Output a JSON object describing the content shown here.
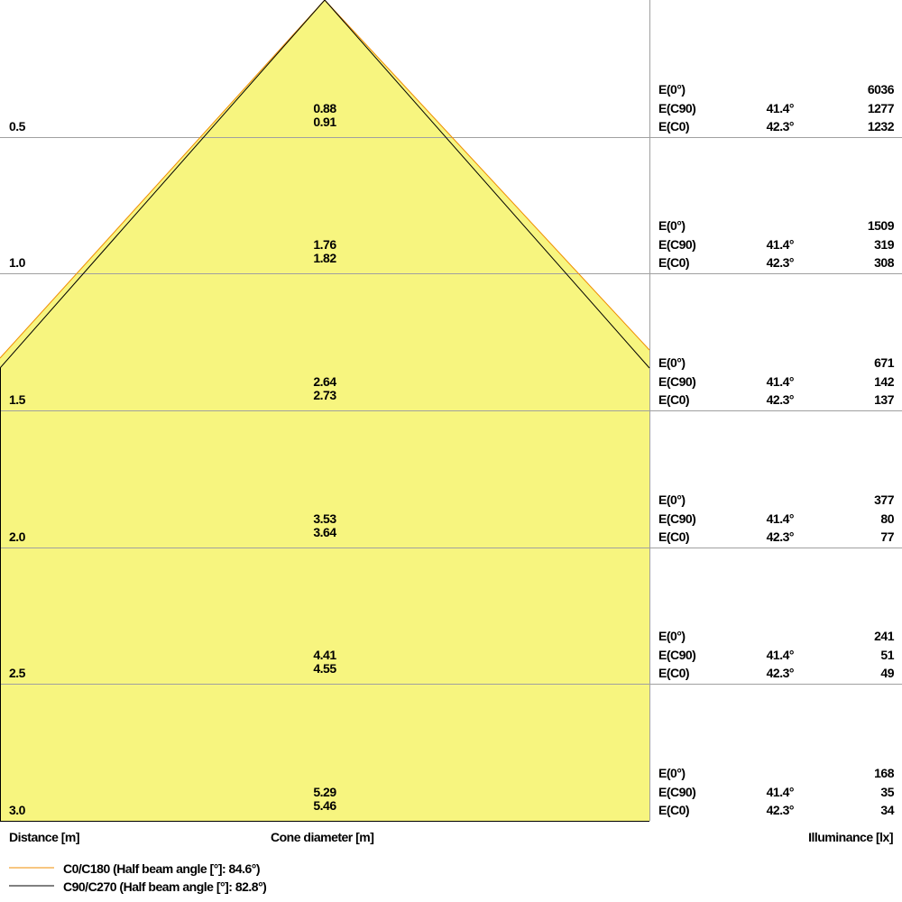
{
  "colors": {
    "cone_fill": "#f7f57f",
    "c0_line": "#f08c00",
    "c90_line": "#000000",
    "grid": "#a0a0a0"
  },
  "rows": [
    {
      "distance": "0.5",
      "d_c0": "0.88",
      "d_c90": "0.91",
      "e0": "6036",
      "a90": "41.4°",
      "e90": "1277",
      "a0": "42.3°",
      "ec0": "1232"
    },
    {
      "distance": "1.0",
      "d_c0": "1.76",
      "d_c90": "1.82",
      "e0": "1509",
      "a90": "41.4°",
      "e90": "319",
      "a0": "42.3°",
      "ec0": "308"
    },
    {
      "distance": "1.5",
      "d_c0": "2.64",
      "d_c90": "2.73",
      "e0": "671",
      "a90": "41.4°",
      "e90": "142",
      "a0": "42.3°",
      "ec0": "137"
    },
    {
      "distance": "2.0",
      "d_c0": "3.53",
      "d_c90": "3.64",
      "e0": "377",
      "a90": "41.4°",
      "e90": "80",
      "a0": "42.3°",
      "ec0": "77"
    },
    {
      "distance": "2.5",
      "d_c0": "4.41",
      "d_c90": "4.55",
      "e0": "241",
      "a90": "41.4°",
      "e90": "51",
      "a0": "42.3°",
      "ec0": "49"
    },
    {
      "distance": "3.0",
      "d_c0": "5.29",
      "d_c90": "5.46",
      "e0": "168",
      "a90": "41.4°",
      "e90": "35",
      "a0": "42.3°",
      "ec0": "34"
    }
  ],
  "labels": {
    "e0": "E(0°)",
    "e90": "E(C90)",
    "ec0": "E(C0)",
    "distance": "Distance [m]",
    "cone": "Cone diameter [m]",
    "illuminance": "Illuminance [lx]"
  },
  "legend": {
    "c0": "C0/C180 (Half beam angle [°]: 84.6°)",
    "c90": "C90/C270 (Half beam angle [°]: 82.8°)"
  }
}
